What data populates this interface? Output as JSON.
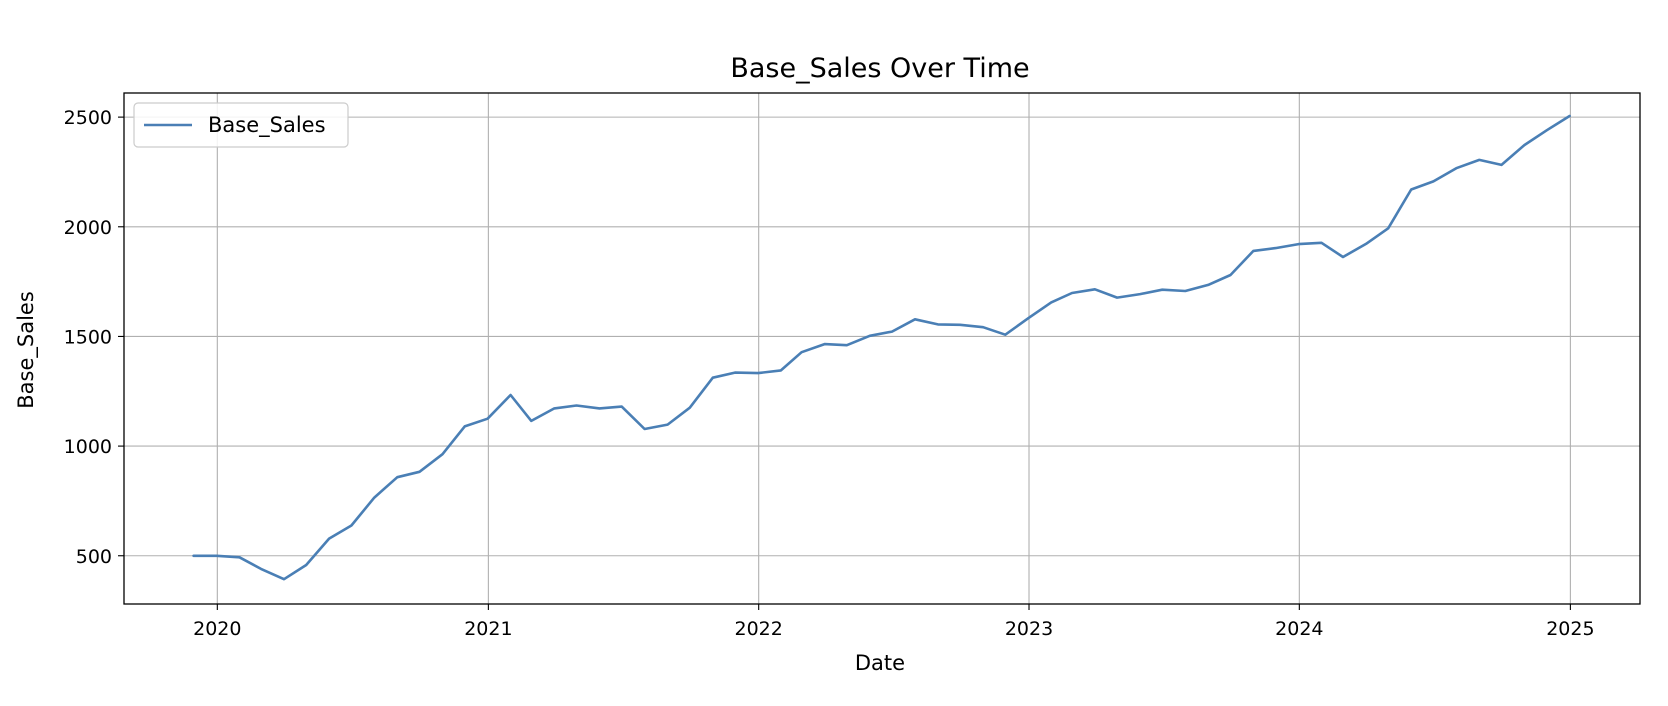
{
  "chart_data": {
    "type": "line",
    "title": "Base_Sales Over Time",
    "xlabel": "Date",
    "ylabel": "Base_Sales",
    "grid": true,
    "legend": {
      "position": "top-left",
      "entries": [
        "Base_Sales"
      ]
    },
    "x_ticks": [
      "2020",
      "2021",
      "2022",
      "2023",
      "2024",
      "2025"
    ],
    "y_ticks": [
      500,
      1000,
      1500,
      2000,
      2500
    ],
    "xlim": [
      "2019-08-28",
      "2025-04-05"
    ],
    "ylim": [
      280,
      2610
    ],
    "colors": {
      "line": "#4a7fb5",
      "grid": "#b0b0b0"
    },
    "series": [
      {
        "name": "Base_Sales",
        "x": [
          "2019-11-30",
          "2019-12-31",
          "2020-01-31",
          "2020-02-29",
          "2020-03-31",
          "2020-04-30",
          "2020-05-31",
          "2020-06-30",
          "2020-07-31",
          "2020-08-31",
          "2020-09-30",
          "2020-10-31",
          "2020-11-30",
          "2020-12-31",
          "2021-01-31",
          "2021-02-28",
          "2021-03-31",
          "2021-04-30",
          "2021-05-31",
          "2021-06-30",
          "2021-07-31",
          "2021-08-31",
          "2021-09-30",
          "2021-10-31",
          "2021-11-30",
          "2021-12-31",
          "2022-01-31",
          "2022-02-28",
          "2022-03-31",
          "2022-04-30",
          "2022-05-31",
          "2022-06-30",
          "2022-07-31",
          "2022-08-31",
          "2022-09-30",
          "2022-10-31",
          "2022-11-30",
          "2022-12-31",
          "2023-01-31",
          "2023-02-28",
          "2023-03-31",
          "2023-04-30",
          "2023-05-31",
          "2023-06-30",
          "2023-07-31",
          "2023-08-31",
          "2023-09-30",
          "2023-10-31",
          "2023-11-30",
          "2023-12-31",
          "2024-01-31",
          "2024-02-29",
          "2024-03-31",
          "2024-04-30",
          "2024-05-31",
          "2024-06-30",
          "2024-07-31",
          "2024-08-31",
          "2024-09-30",
          "2024-10-31",
          "2024-11-30",
          "2024-12-31"
        ],
        "y": [
          500,
          500,
          493,
          440,
          393,
          458,
          578,
          638,
          765,
          858,
          883,
          963,
          1090,
          1125,
          1233,
          1115,
          1172,
          1185,
          1172,
          1180,
          1078,
          1098,
          1175,
          1312,
          1335,
          1333,
          1345,
          1428,
          1465,
          1460,
          1503,
          1522,
          1578,
          1555,
          1553,
          1542,
          1508,
          1583,
          1655,
          1698,
          1715,
          1677,
          1693,
          1713,
          1707,
          1735,
          1780,
          1890,
          1903,
          1921,
          1927,
          1862,
          1922,
          1993,
          2170,
          2207,
          2267,
          2305,
          2282,
          2373,
          2440,
          2505
        ]
      }
    ]
  }
}
